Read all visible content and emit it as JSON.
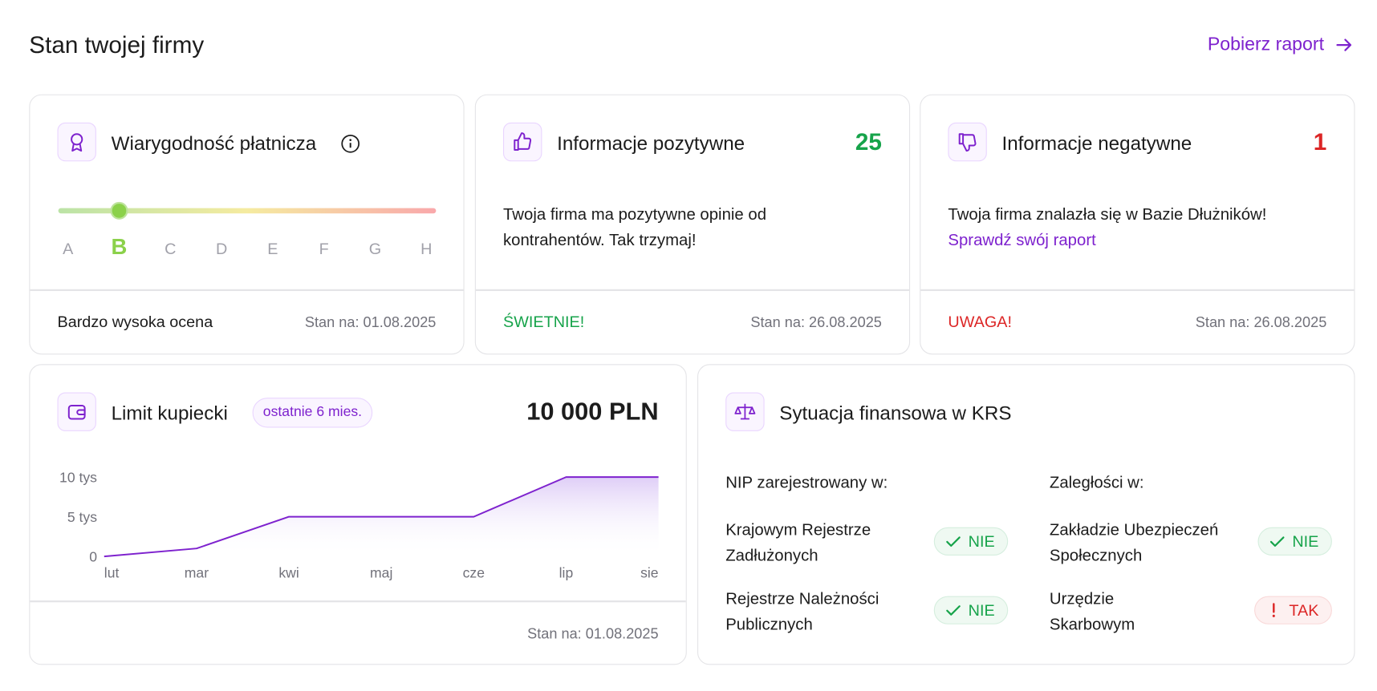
{
  "header": {
    "title": "Stan twojej firmy",
    "link": "Pobierz raport"
  },
  "cards": {
    "rating": {
      "title": "Wiarygodność płatnicza",
      "grades": [
        "A",
        "B",
        "C",
        "D",
        "E",
        "F",
        "G",
        "H"
      ],
      "selected": "B",
      "summary": "Bardzo wysoka ocena",
      "date": "Stan na: 01.08.2025"
    },
    "positive": {
      "title": "Informacje pozytywne",
      "count": 25,
      "text": "Twoja firma ma pozytywne opinie od kontrahentów. Tak trzymaj!",
      "status": "ŚWIETNIE!",
      "color": "#16a34a",
      "date": "Stan na: 26.08.2025"
    },
    "negative": {
      "title": "Informacje negatywne",
      "count": 1,
      "text": "Twoja firma znalazła się w Bazie Dłużników!",
      "link": "Sprawdź swój raport",
      "status": "UWAGA!",
      "color": "#dc2626",
      "date": "Stan na: 26.08.2025"
    },
    "limit": {
      "title": "Limit kupiecki",
      "badge": "ostatnie 6 mies.",
      "amount": "10 000 PLN",
      "date": "Stan na: 01.08.2025"
    },
    "krs": {
      "title": "Sytuacja finansowa w KRS",
      "columns": [
        {
          "heading": "NIP zarejestrowany w:",
          "rows": [
            {
              "lines": [
                "Krajowym Rejestrze",
                "Zadłużonych"
              ],
              "status": "NIE",
              "color": "#16a34a",
              "icon": "check"
            },
            {
              "lines": [
                "Rejestrze Należności",
                "Publicznych"
              ],
              "status": "NIE",
              "color": "#16a34a",
              "icon": "check"
            }
          ]
        },
        {
          "heading": "Zaległości w:",
          "rows": [
            {
              "lines": [
                "Zakładzie Ubezpieczeń",
                "Społecznych"
              ],
              "status": "NIE",
              "color": "#16a34a",
              "icon": "check"
            },
            {
              "lines": [
                "Urzędzie",
                "Skarbowym"
              ],
              "status": "TAK",
              "color": "#dc2626",
              "icon": "alert"
            }
          ]
        }
      ]
    }
  },
  "chart_data": {
    "type": "line",
    "categories": [
      "lut",
      "mar",
      "kwi",
      "maj",
      "cze",
      "lip",
      "sie"
    ],
    "values": [
      0,
      1000,
      5000,
      5000,
      5000,
      10000,
      10000
    ],
    "color": "#7e22ce",
    "ylim": [
      0,
      10000
    ],
    "yticks": [
      0,
      {
        "value": 5000,
        "label": "5 tys"
      },
      {
        "value": 10000,
        "label": "10 tys"
      }
    ]
  }
}
